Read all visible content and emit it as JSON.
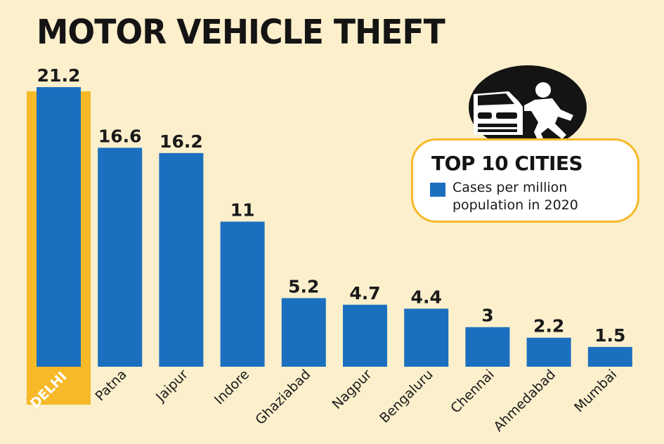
{
  "chart_data": {
    "type": "bar",
    "title": "MOTOR VEHICLE THEFT",
    "categories": [
      "DELHI",
      "Patna",
      "Jaipur",
      "Indore",
      "Ghaziabad",
      "Nagpur",
      "Bengaluru",
      "Chennai",
      "Ahmedabad",
      "Mumbai"
    ],
    "values": [
      21.2,
      16.6,
      16.2,
      11,
      5.2,
      4.7,
      4.4,
      3,
      2.2,
      1.5
    ],
    "value_labels": [
      "21.2",
      "16.6",
      "16.2",
      "11",
      "5.2",
      "4.7",
      "4.4",
      "3",
      "2.2",
      "1.5"
    ],
    "highlighted_category": "DELHI",
    "ylim": [
      0,
      21.2
    ],
    "grid": false,
    "legend_placement": "top-right",
    "legend": {
      "heading": "TOP 10 CITIES",
      "entry": "Cases per million population in 2020"
    }
  },
  "icon": "car-theft-icon",
  "colors": {
    "background": "#fbefcc",
    "bar": "#1b6fbf",
    "highlight": "#f7b928",
    "text": "#141414"
  }
}
